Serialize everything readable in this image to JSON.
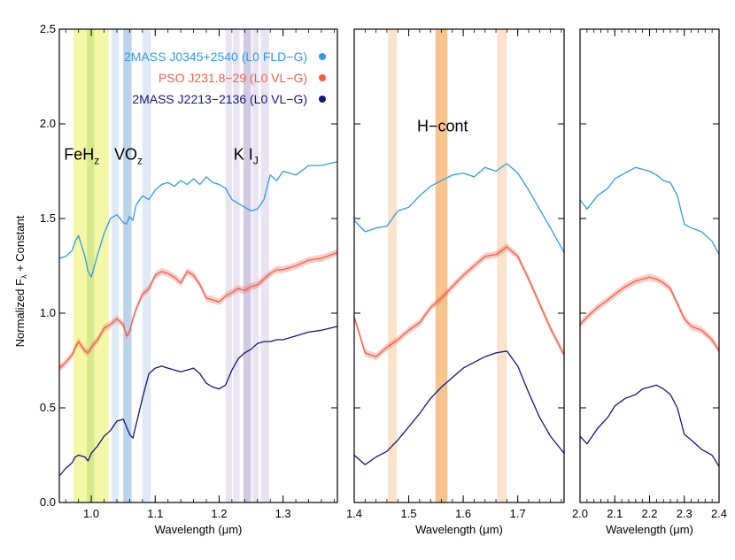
{
  "chart_data": {
    "type": "line",
    "ylabel": "Normalized Fλ + Constant",
    "ylabel_main": "Normalized F",
    "ylabel_sub": "λ",
    "ylabel_tail": " + Constant",
    "ylim": [
      0.0,
      2.5
    ],
    "yticks": [
      "0.0",
      "0.5",
      "1.0",
      "1.5",
      "2.0",
      "2.5"
    ],
    "panels": [
      {
        "xlabel": "Wavelength (μm)",
        "xlim": [
          0.95,
          1.385
        ],
        "xticks": [
          "1.0",
          "1.1",
          "1.2",
          "1.3"
        ],
        "bands": [
          {
            "x0": 0.972,
            "x1": 0.983,
            "color": "#f3f7a6"
          },
          {
            "x0": 0.983,
            "x1": 0.993,
            "color": "#f3f7a6"
          },
          {
            "x0": 0.993,
            "x1": 1.005,
            "color": "#d6e98a"
          },
          {
            "x0": 1.005,
            "x1": 1.015,
            "color": "#f3f7a6"
          },
          {
            "x0": 1.015,
            "x1": 1.027,
            "color": "#f3f7a6"
          },
          {
            "x0": 1.032,
            "x1": 1.043,
            "color": "#dfeaf7"
          },
          {
            "x0": 1.05,
            "x1": 1.063,
            "color": "#bcd3ec"
          },
          {
            "x0": 1.08,
            "x1": 1.093,
            "color": "#dfeaf7"
          },
          {
            "x0": 1.21,
            "x1": 1.22,
            "color": "#e9e4f2"
          },
          {
            "x0": 1.222,
            "x1": 1.232,
            "color": "#e9e4f2"
          },
          {
            "x0": 1.238,
            "x1": 1.25,
            "color": "#d0cae2"
          },
          {
            "x0": 1.252,
            "x1": 1.262,
            "color": "#e9e4f2"
          },
          {
            "x0": 1.265,
            "x1": 1.278,
            "color": "#e9e4f2"
          }
        ],
        "annotations": [
          {
            "base": "FeH",
            "sub": "z",
            "x": 0.985,
            "y": 1.81
          },
          {
            "base": "VO",
            "sub": "z",
            "x": 1.058,
            "y": 1.81
          },
          {
            "base": "K I",
            "sub": "J",
            "x": 1.242,
            "y": 1.81
          }
        ],
        "series": [
          {
            "color": "#2f9be8",
            "shade": false,
            "x": [
              0.95,
              0.96,
              0.97,
              0.975,
              0.98,
              0.99,
              0.995,
              1.0,
              1.01,
              1.02,
              1.03,
              1.04,
              1.05,
              1.055,
              1.06,
              1.065,
              1.07,
              1.08,
              1.09,
              1.1,
              1.11,
              1.12,
              1.13,
              1.14,
              1.15,
              1.16,
              1.17,
              1.18,
              1.19,
              1.2,
              1.21,
              1.22,
              1.23,
              1.24,
              1.25,
              1.26,
              1.27,
              1.28,
              1.29,
              1.3,
              1.32,
              1.34,
              1.36,
              1.385
            ],
            "y": [
              1.29,
              1.3,
              1.33,
              1.38,
              1.41,
              1.3,
              1.22,
              1.19,
              1.31,
              1.42,
              1.5,
              1.52,
              1.48,
              1.47,
              1.51,
              1.49,
              1.57,
              1.62,
              1.6,
              1.65,
              1.68,
              1.69,
              1.67,
              1.7,
              1.68,
              1.71,
              1.68,
              1.72,
              1.69,
              1.68,
              1.66,
              1.6,
              1.58,
              1.56,
              1.54,
              1.55,
              1.6,
              1.73,
              1.7,
              1.75,
              1.73,
              1.78,
              1.78,
              1.8
            ]
          },
          {
            "color": "#f25e4a",
            "shade": true,
            "x": [
              0.95,
              0.96,
              0.97,
              0.975,
              0.98,
              0.99,
              0.995,
              1.0,
              1.01,
              1.02,
              1.03,
              1.04,
              1.05,
              1.055,
              1.06,
              1.065,
              1.07,
              1.08,
              1.09,
              1.1,
              1.11,
              1.12,
              1.13,
              1.14,
              1.15,
              1.16,
              1.17,
              1.18,
              1.19,
              1.2,
              1.21,
              1.22,
              1.23,
              1.24,
              1.25,
              1.26,
              1.27,
              1.28,
              1.29,
              1.3,
              1.32,
              1.34,
              1.36,
              1.385
            ],
            "y": [
              0.71,
              0.74,
              0.78,
              0.82,
              0.85,
              0.8,
              0.79,
              0.82,
              0.86,
              0.92,
              0.94,
              0.97,
              0.94,
              0.88,
              0.9,
              0.97,
              1.02,
              1.1,
              1.13,
              1.2,
              1.22,
              1.21,
              1.19,
              1.16,
              1.22,
              1.2,
              1.15,
              1.08,
              1.07,
              1.06,
              1.09,
              1.11,
              1.13,
              1.12,
              1.14,
              1.15,
              1.18,
              1.21,
              1.23,
              1.23,
              1.25,
              1.28,
              1.29,
              1.32
            ]
          },
          {
            "color": "#15167a",
            "shade": false,
            "x": [
              0.95,
              0.96,
              0.97,
              0.975,
              0.98,
              0.99,
              0.995,
              1.0,
              1.01,
              1.02,
              1.03,
              1.04,
              1.05,
              1.055,
              1.06,
              1.065,
              1.07,
              1.08,
              1.09,
              1.1,
              1.11,
              1.12,
              1.13,
              1.14,
              1.15,
              1.16,
              1.17,
              1.18,
              1.19,
              1.2,
              1.21,
              1.22,
              1.23,
              1.24,
              1.25,
              1.26,
              1.27,
              1.28,
              1.29,
              1.3,
              1.32,
              1.34,
              1.36,
              1.385
            ],
            "y": [
              0.14,
              0.18,
              0.21,
              0.24,
              0.25,
              0.24,
              0.22,
              0.26,
              0.3,
              0.35,
              0.38,
              0.43,
              0.44,
              0.4,
              0.36,
              0.34,
              0.41,
              0.55,
              0.68,
              0.71,
              0.72,
              0.71,
              0.7,
              0.69,
              0.7,
              0.71,
              0.68,
              0.63,
              0.61,
              0.6,
              0.62,
              0.7,
              0.76,
              0.79,
              0.81,
              0.84,
              0.85,
              0.85,
              0.86,
              0.86,
              0.88,
              0.9,
              0.91,
              0.93
            ]
          }
        ]
      },
      {
        "xlabel": "Wavelength (μm)",
        "xlim": [
          1.4,
          1.785
        ],
        "xticks": [
          "1.4",
          "1.5",
          "1.6",
          "1.7"
        ],
        "bands": [
          {
            "x0": 1.462,
            "x1": 1.478,
            "color": "#fbe2cb"
          },
          {
            "x0": 1.549,
            "x1": 1.571,
            "color": "#f6c48f"
          },
          {
            "x0": 1.662,
            "x1": 1.68,
            "color": "#fbe2cb"
          }
        ],
        "annotations": [
          {
            "base": "H−cont",
            "sub": "",
            "x": 1.562,
            "y": 1.96
          }
        ],
        "series": [
          {
            "color": "#2f9be8",
            "shade": false,
            "x": [
              1.4,
              1.42,
              1.44,
              1.46,
              1.48,
              1.5,
              1.52,
              1.54,
              1.56,
              1.58,
              1.6,
              1.62,
              1.64,
              1.66,
              1.68,
              1.7,
              1.72,
              1.74,
              1.76,
              1.785
            ],
            "y": [
              1.49,
              1.43,
              1.45,
              1.46,
              1.54,
              1.56,
              1.62,
              1.67,
              1.7,
              1.73,
              1.74,
              1.72,
              1.77,
              1.75,
              1.79,
              1.74,
              1.65,
              1.55,
              1.45,
              1.32
            ]
          },
          {
            "color": "#f25e4a",
            "shade": true,
            "x": [
              1.4,
              1.42,
              1.44,
              1.46,
              1.48,
              1.5,
              1.52,
              1.54,
              1.56,
              1.58,
              1.6,
              1.62,
              1.64,
              1.66,
              1.68,
              1.7,
              1.72,
              1.74,
              1.76,
              1.785
            ],
            "y": [
              0.98,
              0.79,
              0.77,
              0.82,
              0.86,
              0.91,
              0.95,
              1.03,
              1.08,
              1.14,
              1.2,
              1.25,
              1.3,
              1.31,
              1.35,
              1.3,
              1.18,
              1.05,
              0.92,
              0.78
            ]
          },
          {
            "color": "#15167a",
            "shade": false,
            "x": [
              1.4,
              1.42,
              1.44,
              1.46,
              1.48,
              1.5,
              1.52,
              1.54,
              1.56,
              1.58,
              1.6,
              1.62,
              1.64,
              1.66,
              1.68,
              1.7,
              1.72,
              1.74,
              1.76,
              1.785
            ],
            "y": [
              0.25,
              0.2,
              0.24,
              0.27,
              0.33,
              0.4,
              0.47,
              0.55,
              0.61,
              0.66,
              0.71,
              0.74,
              0.77,
              0.79,
              0.8,
              0.72,
              0.58,
              0.45,
              0.35,
              0.26
            ]
          }
        ]
      },
      {
        "xlabel": "Wavelength (μm)",
        "xlim": [
          2.0,
          2.4
        ],
        "xticks": [
          "2.0",
          "2.1",
          "2.2",
          "2.3",
          "2.4"
        ],
        "bands": [],
        "annotations": [],
        "series": [
          {
            "color": "#2f9be8",
            "shade": false,
            "x": [
              2.0,
              2.02,
              2.05,
              2.08,
              2.1,
              2.13,
              2.16,
              2.18,
              2.2,
              2.22,
              2.24,
              2.26,
              2.28,
              2.3,
              2.32,
              2.35,
              2.38,
              2.4
            ],
            "y": [
              1.6,
              1.55,
              1.62,
              1.66,
              1.71,
              1.74,
              1.77,
              1.76,
              1.75,
              1.73,
              1.7,
              1.69,
              1.62,
              1.47,
              1.45,
              1.43,
              1.38,
              1.31
            ]
          },
          {
            "color": "#f25e4a",
            "shade": true,
            "x": [
              2.0,
              2.02,
              2.05,
              2.08,
              2.1,
              2.13,
              2.16,
              2.18,
              2.2,
              2.22,
              2.24,
              2.26,
              2.28,
              2.3,
              2.32,
              2.35,
              2.38,
              2.4
            ],
            "y": [
              0.94,
              0.98,
              1.03,
              1.07,
              1.1,
              1.14,
              1.17,
              1.18,
              1.19,
              1.18,
              1.16,
              1.13,
              1.05,
              0.97,
              0.93,
              0.91,
              0.86,
              0.8
            ]
          },
          {
            "color": "#15167a",
            "shade": false,
            "x": [
              2.0,
              2.02,
              2.05,
              2.08,
              2.1,
              2.13,
              2.16,
              2.18,
              2.2,
              2.22,
              2.24,
              2.26,
              2.28,
              2.3,
              2.32,
              2.35,
              2.38,
              2.4
            ],
            "y": [
              0.35,
              0.31,
              0.39,
              0.45,
              0.51,
              0.55,
              0.57,
              0.6,
              0.61,
              0.62,
              0.6,
              0.57,
              0.5,
              0.36,
              0.33,
              0.28,
              0.25,
              0.19
            ]
          }
        ]
      }
    ],
    "legend": {
      "placement": "top-right of first panel",
      "entries": [
        {
          "label": "2MASS J0345+2540 (L0 FLD−G)",
          "color": "#2f9be8"
        },
        {
          "label": "PSO J231.8−29 (L0 VL−G)",
          "color": "#f25e4a"
        },
        {
          "label": "2MASS J2213−2136 (L0 VL−G)",
          "color": "#15167a"
        }
      ]
    }
  }
}
